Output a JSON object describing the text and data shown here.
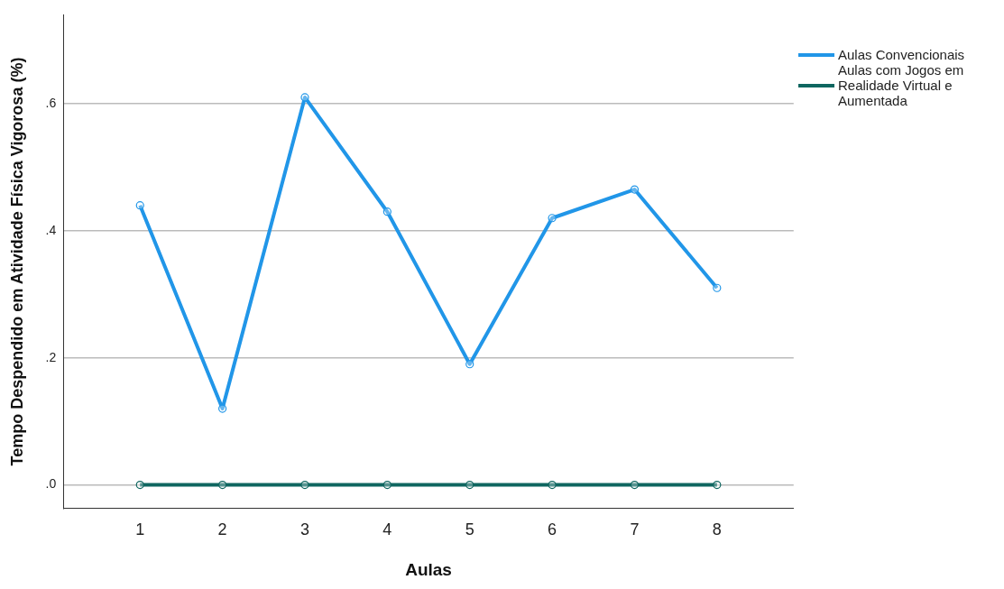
{
  "chart_data": {
    "type": "line",
    "xlabel": "Aulas",
    "ylabel": "Tempo Despendido em Atividade Física Vigorosa (%)",
    "x": [
      1,
      2,
      3,
      4,
      5,
      6,
      7,
      8
    ],
    "xlim": [
      0.07,
      8.93
    ],
    "xticks": [
      1,
      2,
      3,
      4,
      5,
      6,
      7,
      8
    ],
    "ylim": [
      -0.037,
      0.74
    ],
    "yticks": [
      {
        "value": 0,
        "label": ".0"
      },
      {
        "value": 0.2,
        "label": ".2"
      },
      {
        "value": 0.4,
        "label": ".4"
      },
      {
        "value": 0.6,
        "label": ".6"
      }
    ],
    "series": [
      {
        "name": "Aulas Convencionais",
        "color": "#2196e8",
        "values": [
          0.44,
          0.12,
          0.61,
          0.43,
          0.19,
          0.42,
          0.465,
          0.31
        ]
      },
      {
        "name": "Aulas com Jogos em Realidade Virtual e Aumentada",
        "color": "#0f6660",
        "values": [
          0,
          0,
          0,
          0,
          0,
          0,
          0,
          0
        ]
      }
    ],
    "grid": "y",
    "legend": "top right",
    "marker": "circle",
    "line_style": "solid"
  }
}
